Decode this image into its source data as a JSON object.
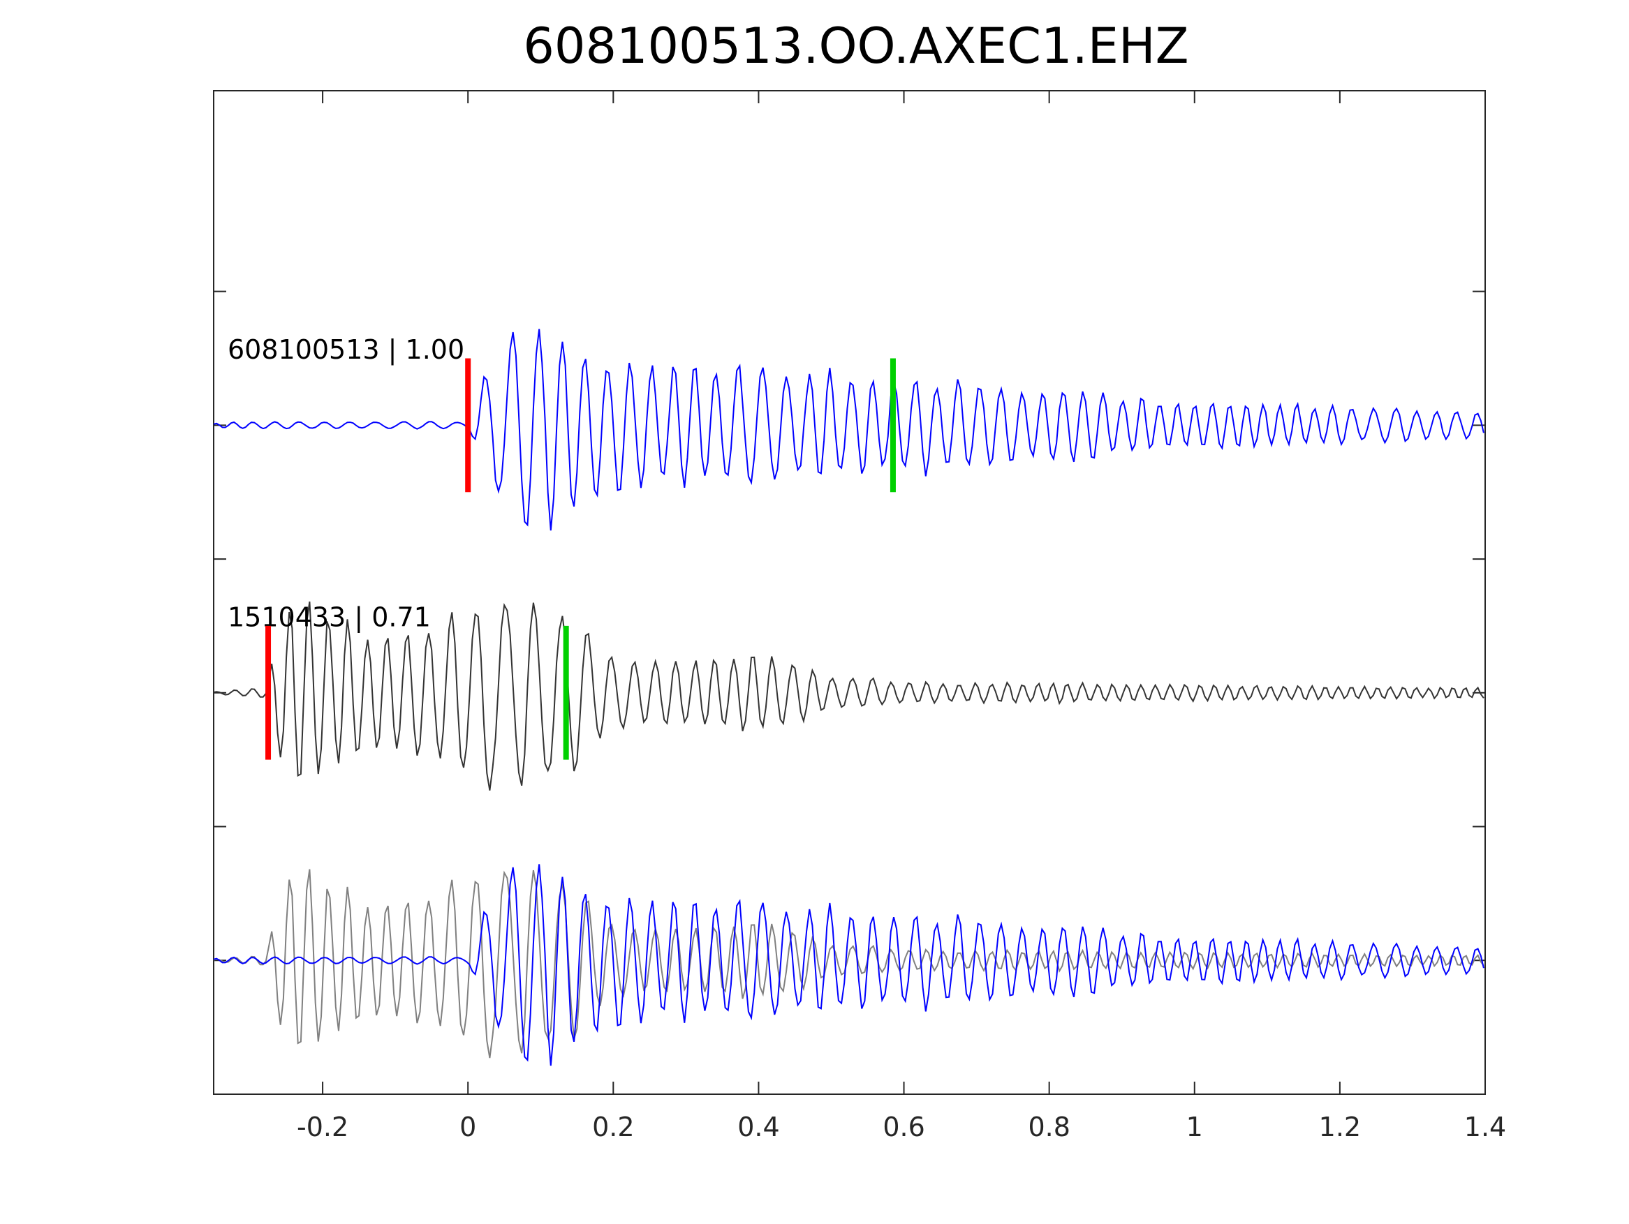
{
  "chart_data": {
    "type": "line",
    "title": "608100513.OO.AXEC1.EHZ",
    "xlabel": "",
    "ylabel": "",
    "xlim": [
      -0.35,
      1.4
    ],
    "ylim": [
      0,
      7.5
    ],
    "grid": false,
    "x_ticks": [
      {
        "value": -0.2,
        "label": "-0.2"
      },
      {
        "value": 0,
        "label": "0"
      },
      {
        "value": 0.2,
        "label": "0.2"
      },
      {
        "value": 0.4,
        "label": "0.4"
      },
      {
        "value": 0.6,
        "label": "0.6"
      },
      {
        "value": 0.8,
        "label": "0.8"
      },
      {
        "value": 1,
        "label": "1"
      },
      {
        "value": 1.2,
        "label": "1.2"
      },
      {
        "value": 1.4,
        "label": "1.4"
      }
    ],
    "y_ticks": [
      1,
      2,
      3,
      4,
      5,
      6
    ],
    "colors": {
      "master": "#0000ff",
      "detection": "#333333",
      "overlay_detection": "#808080",
      "p_pick": "#ff0000",
      "s_pick": "#00d000"
    },
    "traces": [
      {
        "name": "608100513 | 1.00",
        "label": "608100513 | 1.00",
        "baseline": 5.0,
        "color": "master",
        "envelope": [
          [
            -0.35,
            0.03
          ],
          [
            0,
            0.03
          ],
          [
            0.02,
            0.6
          ],
          [
            0.07,
            1.0
          ],
          [
            0.2,
            0.6
          ],
          [
            0.45,
            0.5
          ],
          [
            0.8,
            0.35
          ],
          [
            0.95,
            0.22
          ],
          [
            1.4,
            0.12
          ]
        ]
      },
      {
        "name": "1510433 | 0.71",
        "label": "1510433 | 0.71",
        "baseline": 3.0,
        "color": "detection",
        "envelope": [
          [
            -0.35,
            0.02
          ],
          [
            -0.28,
            0.05
          ],
          [
            -0.26,
            0.95
          ],
          [
            -0.1,
            0.5
          ],
          [
            0.02,
            0.9
          ],
          [
            0.12,
            0.8
          ],
          [
            0.2,
            0.3
          ],
          [
            0.4,
            0.35
          ],
          [
            0.5,
            0.15
          ],
          [
            0.6,
            0.1
          ],
          [
            1.4,
            0.05
          ]
        ]
      },
      {
        "name": "overlay",
        "label": "",
        "baseline": 1.0,
        "color": "overlay",
        "envelope": []
      }
    ],
    "picks": [
      {
        "type": "P",
        "trace": "608100513 | 1.00",
        "x": 0.0,
        "color": "p_pick"
      },
      {
        "type": "S",
        "trace": "608100513 | 1.00",
        "x": 0.585,
        "color": "s_pick"
      },
      {
        "type": "P",
        "trace": "1510433 | 0.71",
        "x": -0.275,
        "color": "p_pick"
      },
      {
        "type": "S",
        "trace": "1510433 | 0.71",
        "x": 0.135,
        "color": "s_pick"
      }
    ]
  }
}
